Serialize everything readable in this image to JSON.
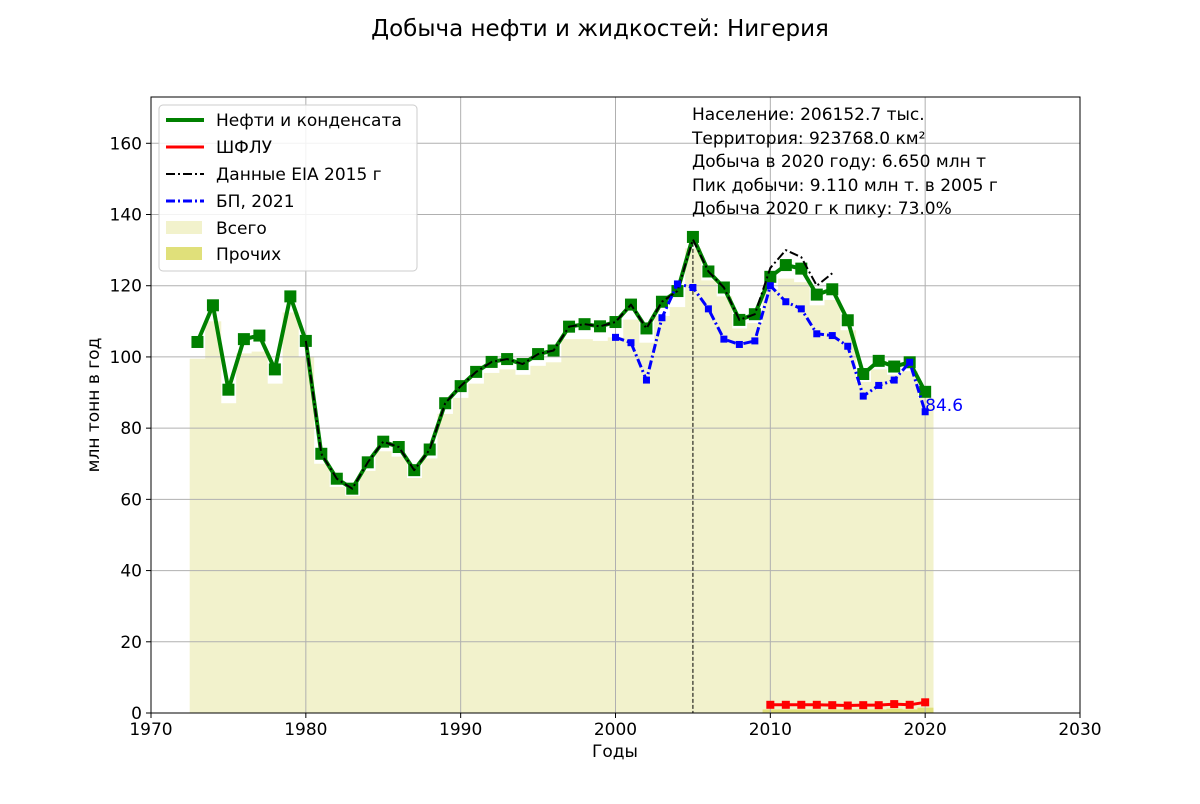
{
  "chart_data": {
    "type": "line",
    "title": "Добыча нефти и жидкостей: Нигерия",
    "xlabel": "Годы",
    "ylabel": "млн тонн в год",
    "xlim": [
      1970,
      2030
    ],
    "ylim": [
      0,
      173
    ],
    "xticks": [
      1970,
      1980,
      1990,
      2000,
      2010,
      2020,
      2030
    ],
    "yticks": [
      0,
      20,
      40,
      60,
      80,
      100,
      120,
      140,
      160
    ],
    "grid": true,
    "legend_position": "top-left",
    "peak_year_marker": 2005,
    "annotation_last_value": "84.6",
    "info_lines": [
      "Население: 206152.7 тыс.",
      "Территория: 923768.0 км²",
      "Добыча в 2020 году: 6.650 млн т",
      "Пик добычи: 9.110 млн т. в 2005 г",
      "Добыча 2020 г к пику: 73.0%"
    ],
    "series": [
      {
        "name": "Нефти и конденсата",
        "color": "#008000",
        "style": "solid",
        "marker": "square",
        "x": [
          1973,
          1974,
          1975,
          1976,
          1977,
          1978,
          1979,
          1980,
          1981,
          1982,
          1983,
          1984,
          1985,
          1986,
          1987,
          1988,
          1989,
          1990,
          1991,
          1992,
          1993,
          1994,
          1995,
          1996,
          1997,
          1998,
          1999,
          2000,
          2001,
          2002,
          2003,
          2004,
          2005,
          2006,
          2007,
          2008,
          2009,
          2010,
          2011,
          2012,
          2013,
          2014,
          2015,
          2016,
          2017,
          2018,
          2019,
          2020
        ],
        "values": [
          104.2,
          114.5,
          90.8,
          105.0,
          106.0,
          96.5,
          117.0,
          104.5,
          72.8,
          65.8,
          63.0,
          70.4,
          76.2,
          74.7,
          68.2,
          74.0,
          87.0,
          91.8,
          95.8,
          98.6,
          99.4,
          98.0,
          100.8,
          101.8,
          108.5,
          109.2,
          108.6,
          109.8,
          114.7,
          108.0,
          115.5,
          118.5,
          133.7,
          124.0,
          119.5,
          110.4,
          112.0,
          122.5,
          125.8,
          124.8,
          117.5,
          119.0,
          110.3,
          95.2,
          98.9,
          97.3,
          98.5,
          90.2
        ]
      },
      {
        "name": "ШФЛУ",
        "color": "#ff0000",
        "style": "solid",
        "marker": "square",
        "x": [
          2010,
          2011,
          2012,
          2013,
          2014,
          2015,
          2016,
          2017,
          2018,
          2019,
          2020
        ],
        "values": [
          2.3,
          2.3,
          2.3,
          2.3,
          2.2,
          2.1,
          2.2,
          2.2,
          2.5,
          2.3,
          3.0
        ]
      },
      {
        "name": "Данные EIA 2015 г",
        "color": "#000000",
        "style": "dashdot",
        "marker": "none",
        "x": [
          1980,
          1981,
          1982,
          1983,
          1984,
          1985,
          1986,
          1987,
          1988,
          1989,
          1990,
          1991,
          1992,
          1993,
          1994,
          1995,
          1996,
          1997,
          1998,
          1999,
          2000,
          2001,
          2002,
          2003,
          2004,
          2005,
          2006,
          2007,
          2008,
          2009,
          2010,
          2011,
          2012,
          2013,
          2014
        ],
        "values": [
          104.5,
          72.8,
          65.8,
          63.0,
          70.4,
          76.2,
          74.7,
          68.2,
          74.0,
          87.0,
          91.8,
          95.8,
          98.6,
          99.4,
          98.0,
          100.8,
          101.8,
          108.5,
          109.2,
          108.6,
          109.8,
          114.7,
          108.0,
          115.5,
          118.5,
          133.0,
          124.0,
          119.5,
          110.4,
          112.0,
          125.0,
          130.0,
          128.0,
          120.0,
          123.5
        ]
      },
      {
        "name": "БП, 2021",
        "color": "#0000ff",
        "style": "dashdot",
        "marker": "small-square",
        "x": [
          2000,
          2001,
          2002,
          2003,
          2004,
          2005,
          2006,
          2007,
          2008,
          2009,
          2010,
          2011,
          2012,
          2013,
          2014,
          2015,
          2016,
          2017,
          2018,
          2019,
          2020
        ],
        "values": [
          105.5,
          104.0,
          93.5,
          111.0,
          120.5,
          119.5,
          113.5,
          105.0,
          103.5,
          104.5,
          120.0,
          115.5,
          113.5,
          106.5,
          106.0,
          103.0,
          89.0,
          92.0,
          93.5,
          98.5,
          84.6
        ]
      }
    ],
    "area_series": [
      {
        "name": "Всего",
        "color": "#f2f2cc",
        "x": [
          1973,
          1974,
          1975,
          1976,
          1977,
          1978,
          1979,
          1980,
          1981,
          1982,
          1983,
          1984,
          1985,
          1986,
          1987,
          1988,
          1989,
          1990,
          1991,
          1992,
          1993,
          1994,
          1995,
          1996,
          1997,
          1998,
          1999,
          2000,
          2001,
          2002,
          2003,
          2004,
          2005,
          2006,
          2007,
          2008,
          2009,
          2010,
          2011,
          2012,
          2013,
          2014,
          2015,
          2016,
          2017,
          2018,
          2019,
          2020
        ],
        "values": [
          99.5,
          110.0,
          87.0,
          101.0,
          101.5,
          92.5,
          112.5,
          100.0,
          70.0,
          63.5,
          61.0,
          68.0,
          73.5,
          72.0,
          66.0,
          71.5,
          84.0,
          88.5,
          92.5,
          95.5,
          96.5,
          95.0,
          97.5,
          98.5,
          105.0,
          105.0,
          104.5,
          105.5,
          110.5,
          104.0,
          111.5,
          114.0,
          130.5,
          121.5,
          117.0,
          108.0,
          109.5,
          119.0,
          122.0,
          121.0,
          114.5,
          116.0,
          107.5,
          93.0,
          96.5,
          95.0,
          96.0,
          88.5
        ]
      },
      {
        "name": "Прочих",
        "color": "#e0e07a",
        "x": [
          2010,
          2011,
          2012,
          2013,
          2014,
          2015,
          2016,
          2017,
          2018,
          2019,
          2020
        ],
        "values": [
          1.0,
          1.0,
          1.0,
          1.0,
          1.0,
          1.0,
          1.0,
          1.0,
          1.2,
          1.0,
          1.5
        ]
      }
    ]
  }
}
